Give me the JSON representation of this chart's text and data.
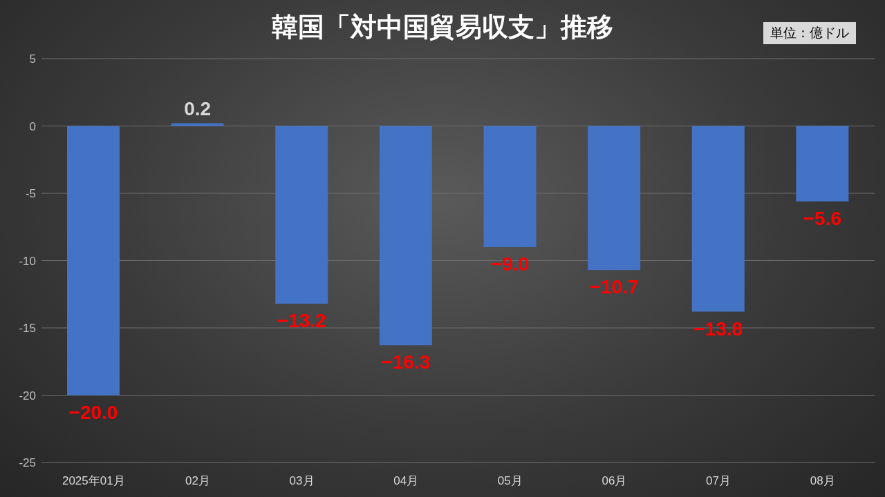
{
  "chart_data": {
    "type": "bar",
    "title": "韓国「対中国貿易収支」推移",
    "annotations": [
      "単位：億ドル"
    ],
    "categories": [
      "2025年01月",
      "02月",
      "03月",
      "04月",
      "05月",
      "06月",
      "07月",
      "08月"
    ],
    "values": [
      -20.0,
      0.2,
      -13.2,
      -16.3,
      -9.0,
      -10.7,
      -13.8,
      -5.6
    ],
    "value_labels": [
      "−20.0",
      "0.2",
      "−13.2",
      "−16.3",
      "−9.0",
      "−10.7",
      "−13.8",
      "−5.6"
    ],
    "color": "#4472c4",
    "ylim": [
      -25,
      5
    ],
    "yticks": [
      -25,
      -20,
      -15,
      -10,
      -5,
      0,
      5
    ],
    "grid": "y"
  }
}
